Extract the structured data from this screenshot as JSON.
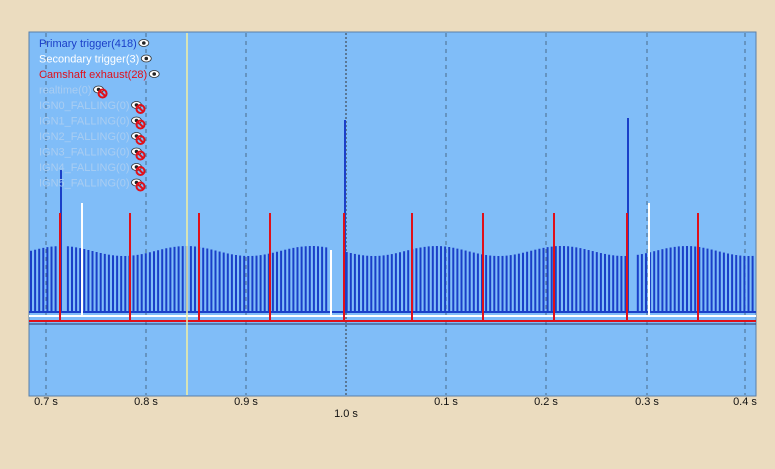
{
  "legend": [
    {
      "label": "Primary trigger(418)",
      "color": "#1a3fc8",
      "visible": true
    },
    {
      "label": "Secondary trigger(3)",
      "color": "#ffffff",
      "visible": true
    },
    {
      "label": "Camshaft exhaust(28)",
      "color": "#e0101a",
      "visible": true
    },
    {
      "label": "realtime(0)",
      "color": "#a9cdf2",
      "visible": false
    },
    {
      "label": "IGN0_FALLING(0)",
      "color": "#a9cdf2",
      "visible": false
    },
    {
      "label": "IGN1_FALLING(0)",
      "color": "#a9cdf2",
      "visible": false
    },
    {
      "label": "IGN2_FALLING(0)",
      "color": "#a9cdf2",
      "visible": false
    },
    {
      "label": "IGN3_FALLING(0)",
      "color": "#a9cdf2",
      "visible": false
    },
    {
      "label": "IGN4_FALLING(0)",
      "color": "#a9cdf2",
      "visible": false
    },
    {
      "label": "IGN5_FALLING(0)",
      "color": "#a9cdf2",
      "visible": false
    }
  ],
  "axis": {
    "labels": [
      "0.7 s",
      "0.8 s",
      "0.9 s",
      "1.0 s",
      "0.1 s",
      "0.2 s",
      "0.3 s",
      "0.4 s"
    ]
  }
}
